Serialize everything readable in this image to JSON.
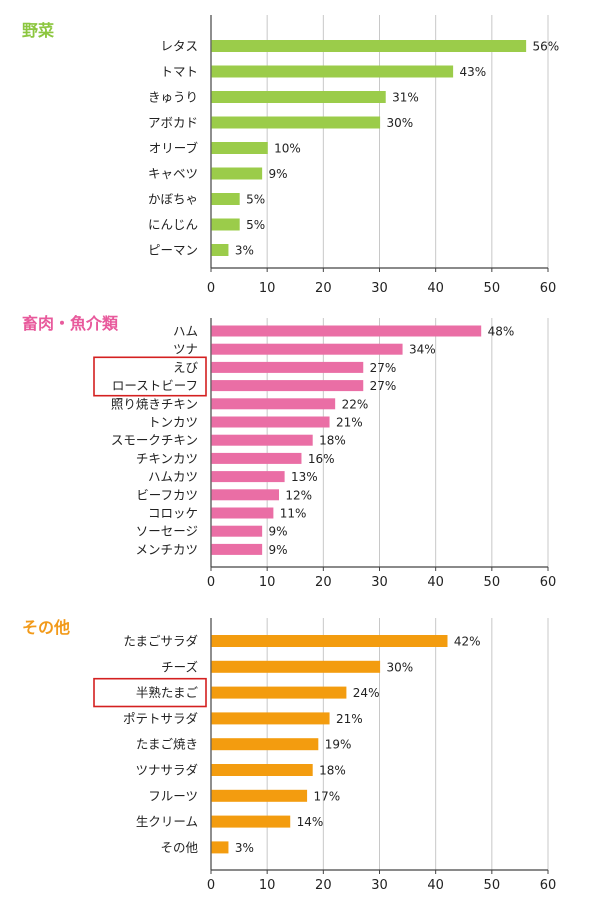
{
  "chart_data": [
    {
      "type": "bar",
      "orientation": "horizontal",
      "title": "野菜",
      "title_color": "#8cc63f",
      "bar_color": "#9bcc4a",
      "categories": [
        "レタス",
        "トマト",
        "きゅうり",
        "アボカド",
        "オリーブ",
        "キャベツ",
        "かぼちゃ",
        "にんじん",
        "ピーマン"
      ],
      "values": [
        56,
        43,
        31,
        30,
        10,
        9,
        5,
        5,
        3
      ],
      "value_labels": [
        "56%",
        "43%",
        "31%",
        "30%",
        "10%",
        "9%",
        "5%",
        "5%",
        "3%"
      ],
      "xlim": [
        0,
        60
      ],
      "xticks": [
        "0",
        "10",
        "20",
        "30",
        "40",
        "50",
        "60"
      ],
      "grid": true,
      "highlighted_categories": []
    },
    {
      "type": "bar",
      "orientation": "horizontal",
      "title": "畜肉・魚介類",
      "title_color": "#e85a9c",
      "bar_color": "#ea6ea5",
      "categories": [
        "ハム",
        "ツナ",
        "えび",
        "ローストビーフ",
        "照り焼きチキン",
        "トンカツ",
        "スモークチキン",
        "チキンカツ",
        "ハムカツ",
        "ビーフカツ",
        "コロッケ",
        "ソーセージ",
        "メンチカツ"
      ],
      "values": [
        48,
        34,
        27,
        27,
        22,
        21,
        18,
        16,
        13,
        12,
        11,
        9,
        9
      ],
      "value_labels": [
        "48%",
        "34%",
        "27%",
        "27%",
        "22%",
        "21%",
        "18%",
        "16%",
        "13%",
        "12%",
        "11%",
        "9%",
        "9%"
      ],
      "xlim": [
        0,
        60
      ],
      "xticks": [
        "0",
        "10",
        "20",
        "30",
        "40",
        "50",
        "60"
      ],
      "grid": true,
      "highlighted_categories": [
        "えび",
        "ローストビーフ"
      ]
    },
    {
      "type": "bar",
      "orientation": "horizontal",
      "title": "その他",
      "title_color": "#f29a1a",
      "bar_color": "#f39c0f",
      "categories": [
        "たまごサラダ",
        "チーズ",
        "半熟たまご",
        "ポテトサラダ",
        "たまご焼き",
        "ツナサラダ",
        "フルーツ",
        "生クリーム",
        "その他"
      ],
      "values": [
        42,
        30,
        24,
        21,
        19,
        18,
        17,
        14,
        3
      ],
      "value_labels": [
        "42%",
        "30%",
        "24%",
        "21%",
        "19%",
        "18%",
        "17%",
        "14%",
        "3%"
      ],
      "xlim": [
        0,
        60
      ],
      "xticks": [
        "0",
        "10",
        "20",
        "30",
        "40",
        "50",
        "60"
      ],
      "grid": true,
      "highlighted_categories": [
        "半熟たまご"
      ]
    }
  ],
  "style": {
    "grid_color": "#c8c8c8",
    "axis_color": "#444444",
    "highlight_color": "#d42020"
  }
}
